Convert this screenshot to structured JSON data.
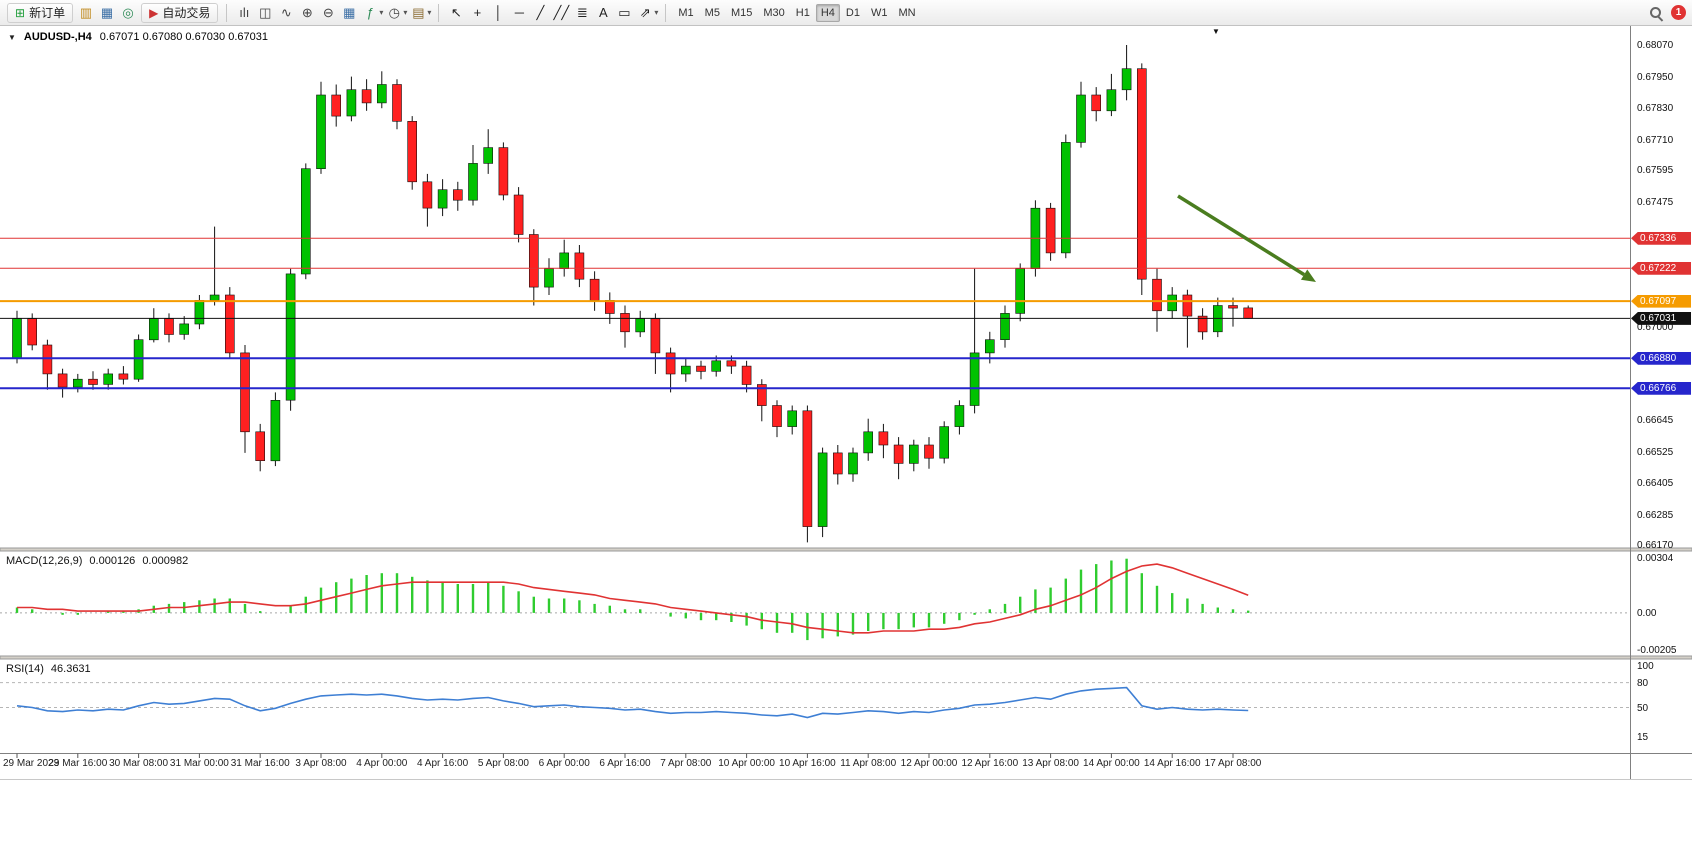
{
  "toolbar": {
    "new_order": {
      "label": "新订单",
      "glyph": "⊞",
      "color": "#1f9d3a"
    },
    "window_icons": [
      {
        "name": "market-watch-icon",
        "glyph": "▥",
        "color": "#c08a1e"
      },
      {
        "name": "data-window-icon",
        "glyph": "▦",
        "color": "#3a6ea5"
      },
      {
        "name": "navigator-icon",
        "glyph": "◎",
        "color": "#2e8b57"
      }
    ],
    "autotrade": {
      "label": "自动交易",
      "glyph": "▶",
      "color": "#cc3333"
    },
    "chart_tools": [
      {
        "name": "bar-chart-icon",
        "glyph": "ılı",
        "color": "#444444"
      },
      {
        "name": "candlestick-icon",
        "glyph": "◫",
        "color": "#444444"
      },
      {
        "name": "line-chart-icon",
        "glyph": "∿",
        "color": "#444444"
      },
      {
        "name": "zoom-in-icon",
        "glyph": "⊕",
        "color": "#444444"
      },
      {
        "name": "zoom-out-icon",
        "glyph": "⊖",
        "color": "#444444"
      },
      {
        "name": "tile-windows-icon",
        "glyph": "▦",
        "color": "#3a6ea5"
      },
      {
        "name": "indicators-icon",
        "glyph": "ƒ",
        "color": "#2e8b57",
        "caret": true
      },
      {
        "name": "timeframes-icon",
        "glyph": "◷",
        "color": "#444444",
        "caret": true
      },
      {
        "name": "templates-icon",
        "glyph": "▤",
        "color": "#8a6a30",
        "caret": true
      }
    ],
    "draw_tools": [
      {
        "name": "cursor-icon",
        "glyph": "↖",
        "color": "#222222"
      },
      {
        "name": "crosshair-icon",
        "glyph": "+",
        "color": "#222222"
      },
      {
        "name": "vertical-line-icon",
        "glyph": "│",
        "color": "#222222"
      },
      {
        "name": "horizontal-line-icon",
        "glyph": "─",
        "color": "#222222"
      },
      {
        "name": "trendline-icon",
        "glyph": "╱",
        "color": "#222222"
      },
      {
        "name": "channel-icon",
        "glyph": "╱╱",
        "color": "#222222"
      },
      {
        "name": "fibonacci-icon",
        "glyph": "≣",
        "color": "#222222"
      },
      {
        "name": "text-icon",
        "glyph": "A",
        "color": "#222222"
      },
      {
        "name": "label-icon",
        "glyph": "▭",
        "color": "#222222"
      },
      {
        "name": "shapes-icon",
        "glyph": "⇗",
        "color": "#222222",
        "caret": true
      }
    ],
    "timeframes": [
      "M1",
      "M5",
      "M15",
      "M30",
      "H1",
      "H4",
      "D1",
      "W1",
      "MN"
    ],
    "active_timeframe": "H4",
    "notification_count": "1"
  },
  "chart": {
    "collapse_glyph": "▼",
    "title": "AUDUSD-,H4",
    "ohlc": "0.67071 0.67080 0.67030 0.67031",
    "shift_marker_glyph": "▼"
  },
  "macd_panel": {
    "label": "MACD(12,26,9)",
    "value_main": "0.000126",
    "value_signal": "0.000982"
  },
  "rsi_panel": {
    "label": "RSI(14)",
    "value": "46.3631"
  },
  "chart_data": {
    "type": "candlestick",
    "symbol": "AUDUSD-",
    "timeframe": "H4",
    "ohlc_current": {
      "open": 0.67071,
      "high": 0.6708,
      "low": 0.6703,
      "close": 0.67031
    },
    "up_color": "#00c200",
    "down_color": "#ff2020",
    "price_axis_ticks": [
      "0.68070",
      "0.67950",
      "0.67830",
      "0.67710",
      "0.67595",
      "0.67475",
      "0.67000",
      "0.66645",
      "0.66525",
      "0.66405",
      "0.66285",
      "0.66170"
    ],
    "levels": [
      {
        "price": 0.67336,
        "label": "0.67336",
        "color": "#e03333",
        "width": 1
      },
      {
        "price": 0.67222,
        "label": "0.67222",
        "color": "#e03333",
        "width": 1
      },
      {
        "price": 0.67097,
        "label": "0.67097",
        "color": "#f59b00",
        "width": 2
      },
      {
        "price": 0.6688,
        "label": "0.66880",
        "color": "#2626cc",
        "width": 2
      },
      {
        "price": 0.66766,
        "label": "0.66766",
        "color": "#2626cc",
        "width": 2
      }
    ],
    "bid": {
      "price": 0.67031,
      "label": "0.67031",
      "color": "#111111"
    },
    "time_labels": [
      "29 Mar 2023",
      "29 Mar 16:00",
      "30 Mar 08:00",
      "31 Mar 00:00",
      "31 Mar 16:00",
      "3 Apr 08:00",
      "4 Apr 00:00",
      "4 Apr 16:00",
      "5 Apr 08:00",
      "6 Apr 00:00",
      "6 Apr 16:00",
      "7 Apr 08:00",
      "10 Apr 00:00",
      "10 Apr 16:00",
      "11 Apr 08:00",
      "12 Apr 00:00",
      "12 Apr 16:00",
      "13 Apr 08:00",
      "14 Apr 00:00",
      "14 Apr 16:00",
      "17 Apr 08:00"
    ],
    "candles": [
      [
        0.6688,
        0.6706,
        0.6686,
        0.6703
      ],
      [
        0.6703,
        0.6705,
        0.6691,
        0.6693
      ],
      [
        0.6693,
        0.6695,
        0.6676,
        0.6682
      ],
      [
        0.6682,
        0.6684,
        0.6673,
        0.6677
      ],
      [
        0.6677,
        0.6682,
        0.6675,
        0.668
      ],
      [
        0.668,
        0.6683,
        0.6676,
        0.6678
      ],
      [
        0.6678,
        0.6684,
        0.6676,
        0.6682
      ],
      [
        0.6682,
        0.6685,
        0.6678,
        0.668
      ],
      [
        0.668,
        0.6697,
        0.6679,
        0.6695
      ],
      [
        0.6695,
        0.6707,
        0.6694,
        0.6703
      ],
      [
        0.6703,
        0.6705,
        0.6694,
        0.6697
      ],
      [
        0.6697,
        0.6704,
        0.6695,
        0.6701
      ],
      [
        0.6701,
        0.6712,
        0.6699,
        0.671
      ],
      [
        0.671,
        0.6738,
        0.6708,
        0.6712
      ],
      [
        0.6712,
        0.6715,
        0.6688,
        0.669
      ],
      [
        0.669,
        0.6693,
        0.6652,
        0.666
      ],
      [
        0.666,
        0.6663,
        0.6645,
        0.6649
      ],
      [
        0.6649,
        0.6675,
        0.6647,
        0.6672
      ],
      [
        0.6672,
        0.6722,
        0.6668,
        0.672
      ],
      [
        0.672,
        0.6762,
        0.6718,
        0.676
      ],
      [
        0.676,
        0.6793,
        0.6758,
        0.6788
      ],
      [
        0.6788,
        0.6792,
        0.6776,
        0.678
      ],
      [
        0.678,
        0.6795,
        0.6778,
        0.679
      ],
      [
        0.679,
        0.6794,
        0.6782,
        0.6785
      ],
      [
        0.6785,
        0.6797,
        0.6783,
        0.6792
      ],
      [
        0.6792,
        0.6794,
        0.6775,
        0.6778
      ],
      [
        0.6778,
        0.678,
        0.6752,
        0.6755
      ],
      [
        0.6755,
        0.6758,
        0.6738,
        0.6745
      ],
      [
        0.6745,
        0.6756,
        0.6742,
        0.6752
      ],
      [
        0.6752,
        0.6755,
        0.6744,
        0.6748
      ],
      [
        0.6748,
        0.6769,
        0.6746,
        0.6762
      ],
      [
        0.6762,
        0.6775,
        0.6758,
        0.6768
      ],
      [
        0.6768,
        0.677,
        0.6748,
        0.675
      ],
      [
        0.675,
        0.6753,
        0.6732,
        0.6735
      ],
      [
        0.6735,
        0.6737,
        0.6708,
        0.6715
      ],
      [
        0.6715,
        0.6726,
        0.6712,
        0.6722
      ],
      [
        0.6722,
        0.6733,
        0.6719,
        0.6728
      ],
      [
        0.6728,
        0.6731,
        0.6715,
        0.6718
      ],
      [
        0.6718,
        0.6721,
        0.6706,
        0.671
      ],
      [
        0.671,
        0.6713,
        0.6701,
        0.6705
      ],
      [
        0.6705,
        0.6708,
        0.6692,
        0.6698
      ],
      [
        0.6698,
        0.6706,
        0.6696,
        0.6703
      ],
      [
        0.6703,
        0.6705,
        0.6682,
        0.669
      ],
      [
        0.669,
        0.6692,
        0.6675,
        0.6682
      ],
      [
        0.6682,
        0.6688,
        0.6679,
        0.6685
      ],
      [
        0.6685,
        0.6687,
        0.668,
        0.6683
      ],
      [
        0.6683,
        0.6689,
        0.6681,
        0.6687
      ],
      [
        0.6687,
        0.6689,
        0.6682,
        0.6685
      ],
      [
        0.6685,
        0.6687,
        0.6675,
        0.6678
      ],
      [
        0.6678,
        0.668,
        0.6664,
        0.667
      ],
      [
        0.667,
        0.6672,
        0.6658,
        0.6662
      ],
      [
        0.6662,
        0.667,
        0.6659,
        0.6668
      ],
      [
        0.6668,
        0.667,
        0.6618,
        0.6624
      ],
      [
        0.6624,
        0.6654,
        0.662,
        0.6652
      ],
      [
        0.6652,
        0.6655,
        0.664,
        0.6644
      ],
      [
        0.6644,
        0.6654,
        0.6641,
        0.6652
      ],
      [
        0.6652,
        0.6665,
        0.6649,
        0.666
      ],
      [
        0.666,
        0.6663,
        0.665,
        0.6655
      ],
      [
        0.6655,
        0.6658,
        0.6642,
        0.6648
      ],
      [
        0.6648,
        0.6657,
        0.6645,
        0.6655
      ],
      [
        0.6655,
        0.6658,
        0.6646,
        0.665
      ],
      [
        0.665,
        0.6664,
        0.6648,
        0.6662
      ],
      [
        0.6662,
        0.6672,
        0.6659,
        0.667
      ],
      [
        0.667,
        0.6722,
        0.6667,
        0.669
      ],
      [
        0.669,
        0.6698,
        0.6686,
        0.6695
      ],
      [
        0.6695,
        0.6708,
        0.6692,
        0.6705
      ],
      [
        0.6705,
        0.6724,
        0.6702,
        0.6722
      ],
      [
        0.6722,
        0.6748,
        0.6719,
        0.6745
      ],
      [
        0.6745,
        0.6747,
        0.6725,
        0.6728
      ],
      [
        0.6728,
        0.6773,
        0.6726,
        0.677
      ],
      [
        0.677,
        0.6793,
        0.6768,
        0.6788
      ],
      [
        0.6788,
        0.6791,
        0.6778,
        0.6782
      ],
      [
        0.6782,
        0.6796,
        0.678,
        0.679
      ],
      [
        0.679,
        0.6807,
        0.6786,
        0.6798
      ],
      [
        0.6798,
        0.68,
        0.6712,
        0.6718
      ],
      [
        0.6718,
        0.6722,
        0.6698,
        0.6706
      ],
      [
        0.6706,
        0.6715,
        0.6703,
        0.6712
      ],
      [
        0.6712,
        0.6714,
        0.6692,
        0.6704
      ],
      [
        0.6704,
        0.6707,
        0.6695,
        0.6698
      ],
      [
        0.6698,
        0.6711,
        0.6696,
        0.6708
      ],
      [
        0.6708,
        0.6711,
        0.67,
        0.6707
      ],
      [
        0.67071,
        0.6708,
        0.6703,
        0.67031
      ]
    ],
    "macd": {
      "axis_ticks": [
        "0.00304",
        "0.00",
        "-0.00205"
      ],
      "histogram_color": "#2fcc2f",
      "signal_color": "#e03333",
      "main": [
        0.0003,
        0.0002,
        0.0,
        -0.0001,
        -0.0001,
        0.0,
        0.0001,
        0.0001,
        0.0002,
        0.0004,
        0.0005,
        0.0006,
        0.0007,
        0.0008,
        0.0008,
        0.0005,
        0.0001,
        0.0,
        0.0004,
        0.0009,
        0.0014,
        0.0017,
        0.0019,
        0.0021,
        0.0022,
        0.0022,
        0.002,
        0.0018,
        0.0017,
        0.0016,
        0.0016,
        0.0017,
        0.0015,
        0.0012,
        0.0009,
        0.0008,
        0.0008,
        0.0007,
        0.0005,
        0.0004,
        0.0002,
        0.0002,
        0.0,
        -0.0002,
        -0.0003,
        -0.0004,
        -0.0004,
        -0.0005,
        -0.0007,
        -0.0009,
        -0.0011,
        -0.0011,
        -0.0015,
        -0.0014,
        -0.0013,
        -0.0012,
        -0.001,
        -0.0009,
        -0.0009,
        -0.0008,
        -0.0008,
        -0.0006,
        -0.0004,
        -0.0001,
        0.0002,
        0.0005,
        0.0009,
        0.0013,
        0.0014,
        0.0019,
        0.0024,
        0.0027,
        0.0029,
        0.003,
        0.0022,
        0.0015,
        0.0011,
        0.0008,
        0.0005,
        0.0003,
        0.0002,
        0.00013
      ],
      "signal": [
        0.0003,
        0.0003,
        0.0002,
        0.0002,
        0.0001,
        0.0001,
        0.0001,
        0.0001,
        0.0001,
        0.0002,
        0.0003,
        0.0003,
        0.0004,
        0.0005,
        0.0006,
        0.0006,
        0.0005,
        0.0004,
        0.0004,
        0.0005,
        0.0007,
        0.0009,
        0.0011,
        0.0013,
        0.0015,
        0.0016,
        0.0017,
        0.0017,
        0.0017,
        0.0017,
        0.0017,
        0.0017,
        0.0017,
        0.0016,
        0.0014,
        0.0013,
        0.0012,
        0.0011,
        0.001,
        0.0008,
        0.0007,
        0.0006,
        0.0005,
        0.0003,
        0.0002,
        0.0001,
        0.0,
        -0.0001,
        -0.0002,
        -0.0004,
        -0.0005,
        -0.0006,
        -0.0008,
        -0.0009,
        -0.001,
        -0.0011,
        -0.0011,
        -0.001,
        -0.001,
        -0.001,
        -0.0009,
        -0.0009,
        -0.0008,
        -0.0006,
        -0.0005,
        -0.0003,
        -0.0001,
        0.0002,
        0.0004,
        0.0007,
        0.001,
        0.0014,
        0.0019,
        0.0023,
        0.0026,
        0.0027,
        0.0025,
        0.0022,
        0.0019,
        0.0016,
        0.0013,
        0.00098
      ]
    },
    "rsi": {
      "axis_ticks": [
        "100",
        "80",
        "50",
        "15"
      ],
      "level_lines": [
        80,
        50
      ],
      "line_color": "#3e7fd4",
      "values": [
        52,
        50,
        46,
        45,
        47,
        46,
        48,
        47,
        52,
        56,
        54,
        55,
        58,
        61,
        60,
        52,
        46,
        49,
        55,
        60,
        64,
        65,
        66,
        65,
        66,
        64,
        61,
        59,
        60,
        59,
        61,
        62,
        58,
        55,
        51,
        52,
        53,
        51,
        50,
        49,
        47,
        48,
        45,
        43,
        44,
        44,
        45,
        44,
        43,
        41,
        40,
        42,
        38,
        43,
        42,
        44,
        46,
        45,
        43,
        45,
        44,
        47,
        49,
        53,
        54,
        56,
        59,
        62,
        60,
        66,
        70,
        72,
        73,
        74,
        52,
        48,
        50,
        48,
        47,
        48,
        47,
        46.36
      ]
    },
    "annotation_arrow": {
      "from": [
        1178,
        196
      ],
      "to": [
        1316,
        282
      ],
      "color": "#4a7d1f"
    }
  }
}
